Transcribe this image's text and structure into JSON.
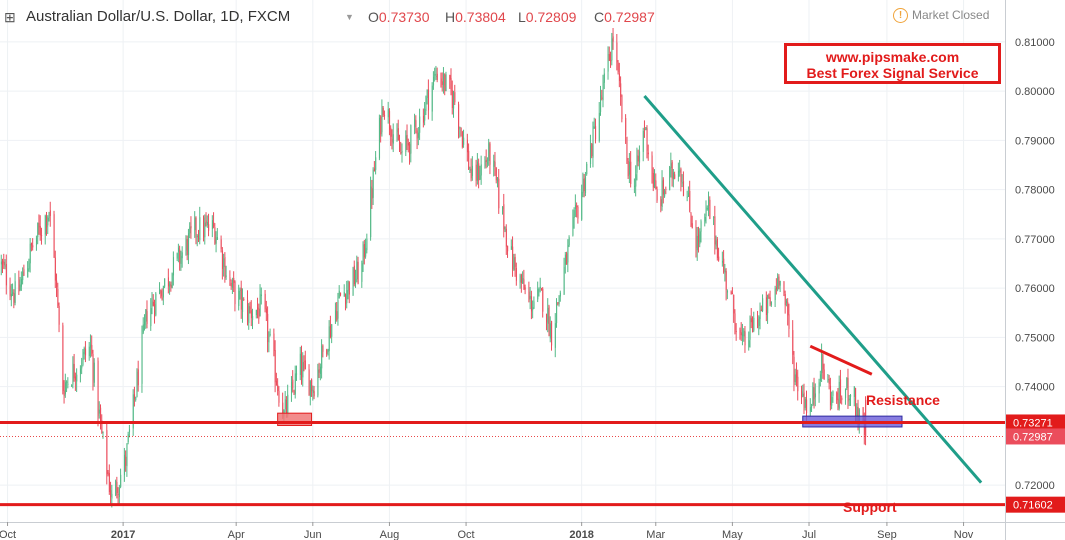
{
  "header": {
    "expand_icon": "square-plus-icon",
    "title": "Australian Dollar/U.S. Dollar, 1D, FXCM",
    "ohlc": [
      {
        "key": "O",
        "value": "0.73730"
      },
      {
        "key": "H",
        "value": "0.73804"
      },
      {
        "key": "L",
        "value": "0.72809"
      },
      {
        "key": "C",
        "value": "0.72987"
      }
    ],
    "status_icon": "warning-circle-icon",
    "market_status": "Market Closed"
  },
  "watermark": {
    "line1": "www.pipsmake.com",
    "line2": "Best Forex Signal Service"
  },
  "colors": {
    "up": "#53b987",
    "down": "#eb4d5c",
    "trendline": "#1f9e89",
    "level": "#e21b1b",
    "zone_red": "#f07878",
    "zone_blue": "#6a5cd8",
    "grid": "#eef1f4",
    "axis_text": "#4a4a4a"
  },
  "chart_data": {
    "type": "candlestick",
    "symbol": "AUD/USD",
    "timeframe": "1D",
    "grid": true,
    "x_ticks": [
      {
        "date": "2016-10-01",
        "label": "Oct",
        "bold": false
      },
      {
        "date": "2017-01-01",
        "label": "2017",
        "bold": true
      },
      {
        "date": "2017-04-01",
        "label": "Apr",
        "bold": false
      },
      {
        "date": "2017-06-01",
        "label": "Jun",
        "bold": false
      },
      {
        "date": "2017-08-01",
        "label": "Aug",
        "bold": false
      },
      {
        "date": "2017-10-01",
        "label": "Oct",
        "bold": false
      },
      {
        "date": "2018-01-01",
        "label": "2018",
        "bold": true
      },
      {
        "date": "2018-03-01",
        "label": "Mar",
        "bold": false
      },
      {
        "date": "2018-05-01",
        "label": "May",
        "bold": false
      },
      {
        "date": "2018-07-01",
        "label": "Jul",
        "bold": false
      },
      {
        "date": "2018-09-01",
        "label": "Sep",
        "bold": false
      },
      {
        "date": "2018-11-01",
        "label": "Nov",
        "bold": false
      }
    ],
    "y_ticks": [
      0.72,
      0.74,
      0.75,
      0.76,
      0.77,
      0.78,
      0.79,
      0.8,
      0.81
    ],
    "ylim": [
      0.7125,
      0.8185
    ],
    "xlim": [
      "2016-09-25",
      "2018-12-04"
    ],
    "price_path": [
      [
        "2016-09-25",
        0.765
      ],
      [
        "2016-10-08",
        0.758
      ],
      [
        "2016-10-20",
        0.768
      ],
      [
        "2016-11-03",
        0.776
      ],
      [
        "2016-11-08",
        0.763
      ],
      [
        "2016-11-14",
        0.74
      ],
      [
        "2016-11-22",
        0.743
      ],
      [
        "2016-12-06",
        0.748
      ],
      [
        "2016-12-15",
        0.73
      ],
      [
        "2016-12-23",
        0.717
      ],
      [
        "2017-01-03",
        0.725
      ],
      [
        "2017-01-20",
        0.755
      ],
      [
        "2017-02-08",
        0.763
      ],
      [
        "2017-02-28",
        0.772
      ],
      [
        "2017-03-15",
        0.772
      ],
      [
        "2017-03-28",
        0.76
      ],
      [
        "2017-04-10",
        0.755
      ],
      [
        "2017-04-22",
        0.756
      ],
      [
        "2017-05-09",
        0.734
      ],
      [
        "2017-05-22",
        0.744
      ],
      [
        "2017-06-01",
        0.74
      ],
      [
        "2017-06-22",
        0.758
      ],
      [
        "2017-07-10",
        0.764
      ],
      [
        "2017-07-27",
        0.798
      ],
      [
        "2017-08-10",
        0.787
      ],
      [
        "2017-08-22",
        0.792
      ],
      [
        "2017-09-08",
        0.804
      ],
      [
        "2017-09-22",
        0.798
      ],
      [
        "2017-10-06",
        0.782
      ],
      [
        "2017-10-20",
        0.787
      ],
      [
        "2017-11-06",
        0.766
      ],
      [
        "2017-11-20",
        0.757
      ],
      [
        "2017-12-01",
        0.758
      ],
      [
        "2017-12-08",
        0.751
      ],
      [
        "2017-12-20",
        0.766
      ],
      [
        "2018-01-15",
        0.796
      ],
      [
        "2018-01-26",
        0.811
      ],
      [
        "2018-02-06",
        0.786
      ],
      [
        "2018-02-12",
        0.781
      ],
      [
        "2018-02-20",
        0.793
      ],
      [
        "2018-03-02",
        0.777
      ],
      [
        "2018-03-19",
        0.786
      ],
      [
        "2018-04-03",
        0.769
      ],
      [
        "2018-04-12",
        0.776
      ],
      [
        "2018-05-09",
        0.748
      ],
      [
        "2018-05-20",
        0.754
      ],
      [
        "2018-06-01",
        0.757
      ],
      [
        "2018-06-08",
        0.764
      ],
      [
        "2018-06-20",
        0.742
      ],
      [
        "2018-07-02",
        0.735
      ],
      [
        "2018-07-10",
        0.745
      ],
      [
        "2018-07-20",
        0.737
      ],
      [
        "2018-08-03",
        0.74
      ],
      [
        "2018-08-10",
        0.733
      ],
      [
        "2018-08-15",
        0.73
      ]
    ],
    "last_candle": {
      "date": "2018-08-15",
      "open": 0.7373,
      "high": 0.73804,
      "low": 0.72809,
      "close": 0.72987
    },
    "annotations": {
      "trendline": {
        "from": [
          "2018-02-20",
          0.799
        ],
        "to": [
          "2018-11-15",
          0.7205
        ]
      },
      "resistance_line": {
        "from": [
          "2018-07-02",
          0.7482
        ],
        "to": [
          "2018-08-20",
          0.7425
        ],
        "label": "Resistance"
      },
      "level_upper": {
        "price": 0.73271,
        "label": "0.73271"
      },
      "level_lower": {
        "price": 0.71602,
        "label": "0.71602",
        "caption": "Support"
      },
      "current_price": {
        "price": 0.72987,
        "label": "0.72987"
      },
      "zone_red": {
        "from": "2017-05-04",
        "to": "2017-05-31",
        "top": 0.7346,
        "bottom": 0.7321
      },
      "zone_blue": {
        "from": "2018-06-26",
        "to": "2018-09-13",
        "top": 0.734,
        "bottom": 0.7318
      }
    }
  }
}
